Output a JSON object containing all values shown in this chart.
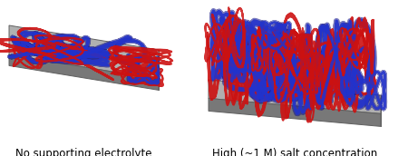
{
  "background_color": "#ffffff",
  "label_left": "No supporting electrolyte",
  "label_right": "High (~1 M) salt concentration",
  "label_fontsize": 8.5,
  "platform_color_top": "#b0b0b0",
  "platform_color_front": "#787878",
  "platform_color_right": "#989898",
  "platform_edge_color": "#606060",
  "red_color": "#cc1111",
  "blue_color": "#2233cc",
  "blue_outline": "#111288",
  "fig_width": 4.5,
  "fig_height": 1.72
}
